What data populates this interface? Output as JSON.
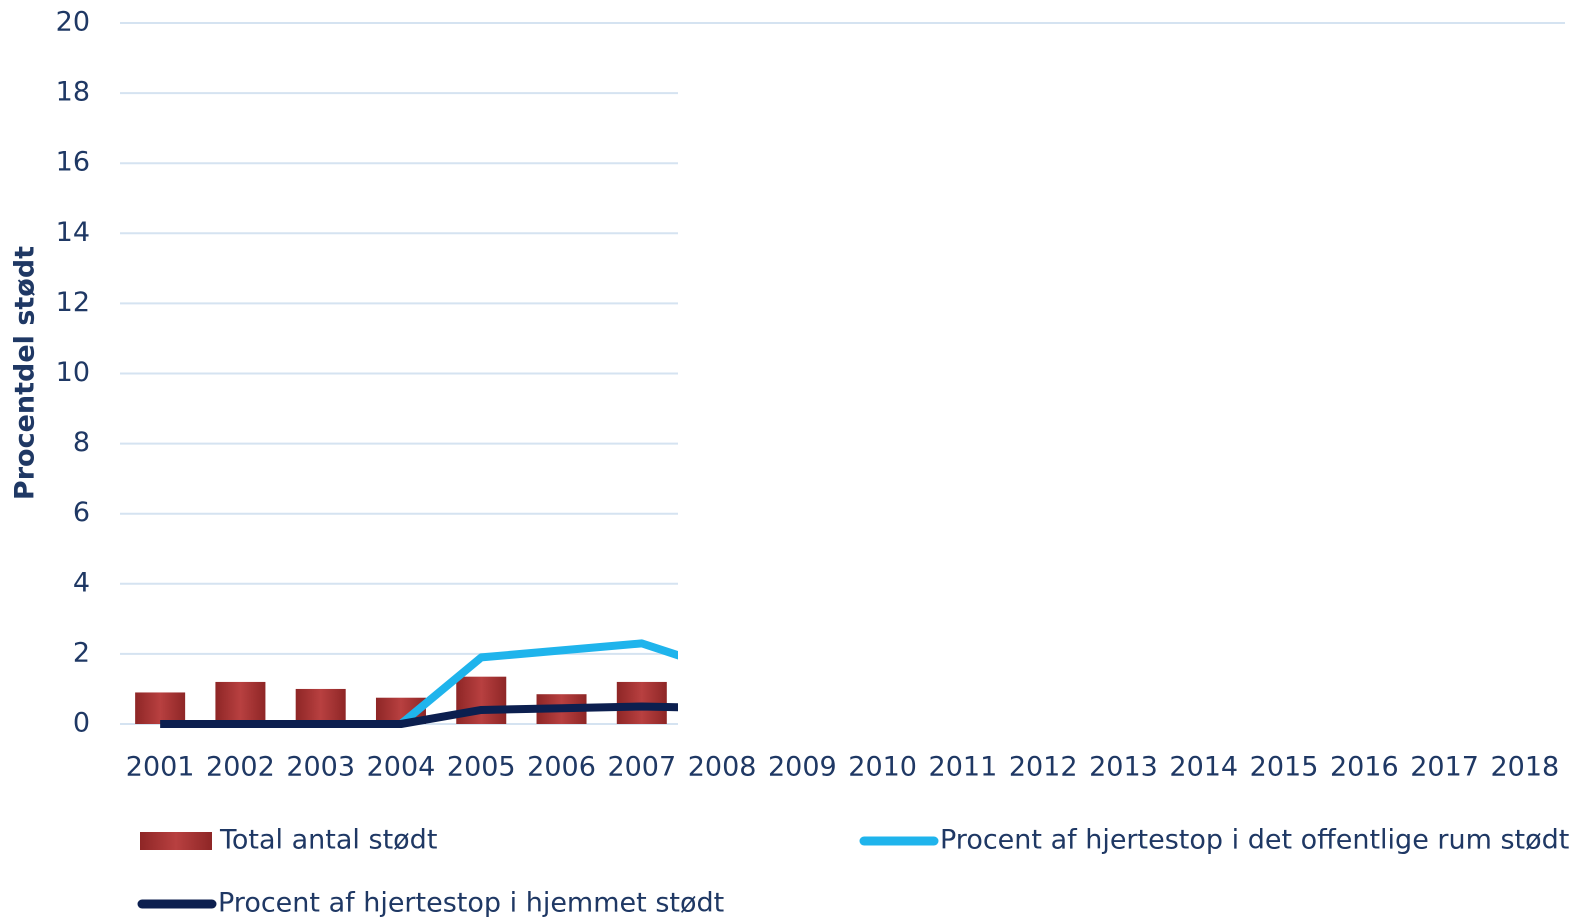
{
  "chart_data": {
    "type": "bar",
    "y_label": "Procentdel stødt",
    "categories": [
      "2001",
      "2002",
      "2003",
      "2004",
      "2005",
      "2006",
      "2007",
      "2008",
      "2009",
      "2010",
      "2011",
      "2012",
      "2013",
      "2014",
      "2015",
      "2016",
      "2017",
      "2018"
    ],
    "series": [
      {
        "name": "Total antal stødt",
        "type": "bar",
        "color": "#a83232",
        "values": [
          0.9,
          1.2,
          1.0,
          0.75,
          1.35,
          0.85,
          1.2,
          null,
          null,
          null,
          null,
          null,
          null,
          null,
          null,
          null,
          null,
          null
        ]
      },
      {
        "name": "Procent af hjertestop i det offentlige rum stødt",
        "type": "line",
        "color": "#1fb4ec",
        "values": [
          null,
          null,
          null,
          0.0,
          1.9,
          2.1,
          2.3,
          1.55,
          null,
          null,
          null,
          null,
          null,
          null,
          null,
          null,
          null,
          null
        ]
      },
      {
        "name": "Procent af hjertestop i hjemmet stødt",
        "type": "line",
        "color": "#0c1f4f",
        "values": [
          0.0,
          0.0,
          0.0,
          0.0,
          0.4,
          0.45,
          0.5,
          0.45,
          null,
          null,
          null,
          null,
          null,
          null,
          null,
          null,
          null,
          null
        ]
      }
    ],
    "ylim": [
      0,
      20
    ],
    "yticks": [
      0,
      2,
      4,
      6,
      8,
      10,
      12,
      14,
      16,
      18,
      20
    ],
    "grid": true
  }
}
